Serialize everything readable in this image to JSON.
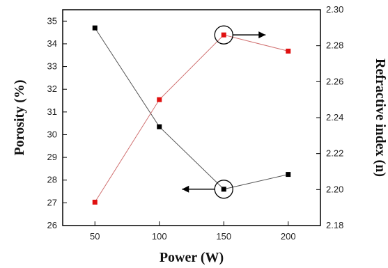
{
  "chart_data": {
    "type": "line",
    "xlabel": "Power (W)",
    "ylabel_left": "Porosity (%)",
    "ylabel_right": "Refractive index (n)",
    "x": [
      50,
      100,
      150,
      200
    ],
    "xticks": [
      "50",
      "100",
      "150",
      "200"
    ],
    "xlim": [
      25,
      225
    ],
    "ylim_left": [
      26,
      35.5
    ],
    "ylim_right": [
      2.18,
      2.3
    ],
    "yticks_left": [
      "26",
      "27",
      "28",
      "29",
      "30",
      "31",
      "32",
      "33",
      "34",
      "35"
    ],
    "yticks_right": [
      "2.18",
      "2.20",
      "2.22",
      "2.24",
      "2.26",
      "2.28",
      "2.30"
    ],
    "grid": false,
    "series": [
      {
        "axis": "left",
        "color": "#000000",
        "marker": "square",
        "values": [
          34.7,
          30.35,
          27.6,
          28.25
        ]
      },
      {
        "axis": "right",
        "color": "#e01010",
        "marker": "square",
        "values": [
          2.193,
          2.25,
          2.286,
          2.277
        ]
      }
    ],
    "annotations": [
      {
        "series": 0,
        "x": 150,
        "arrow": "left"
      },
      {
        "series": 1,
        "x": 150,
        "arrow": "right"
      }
    ]
  }
}
